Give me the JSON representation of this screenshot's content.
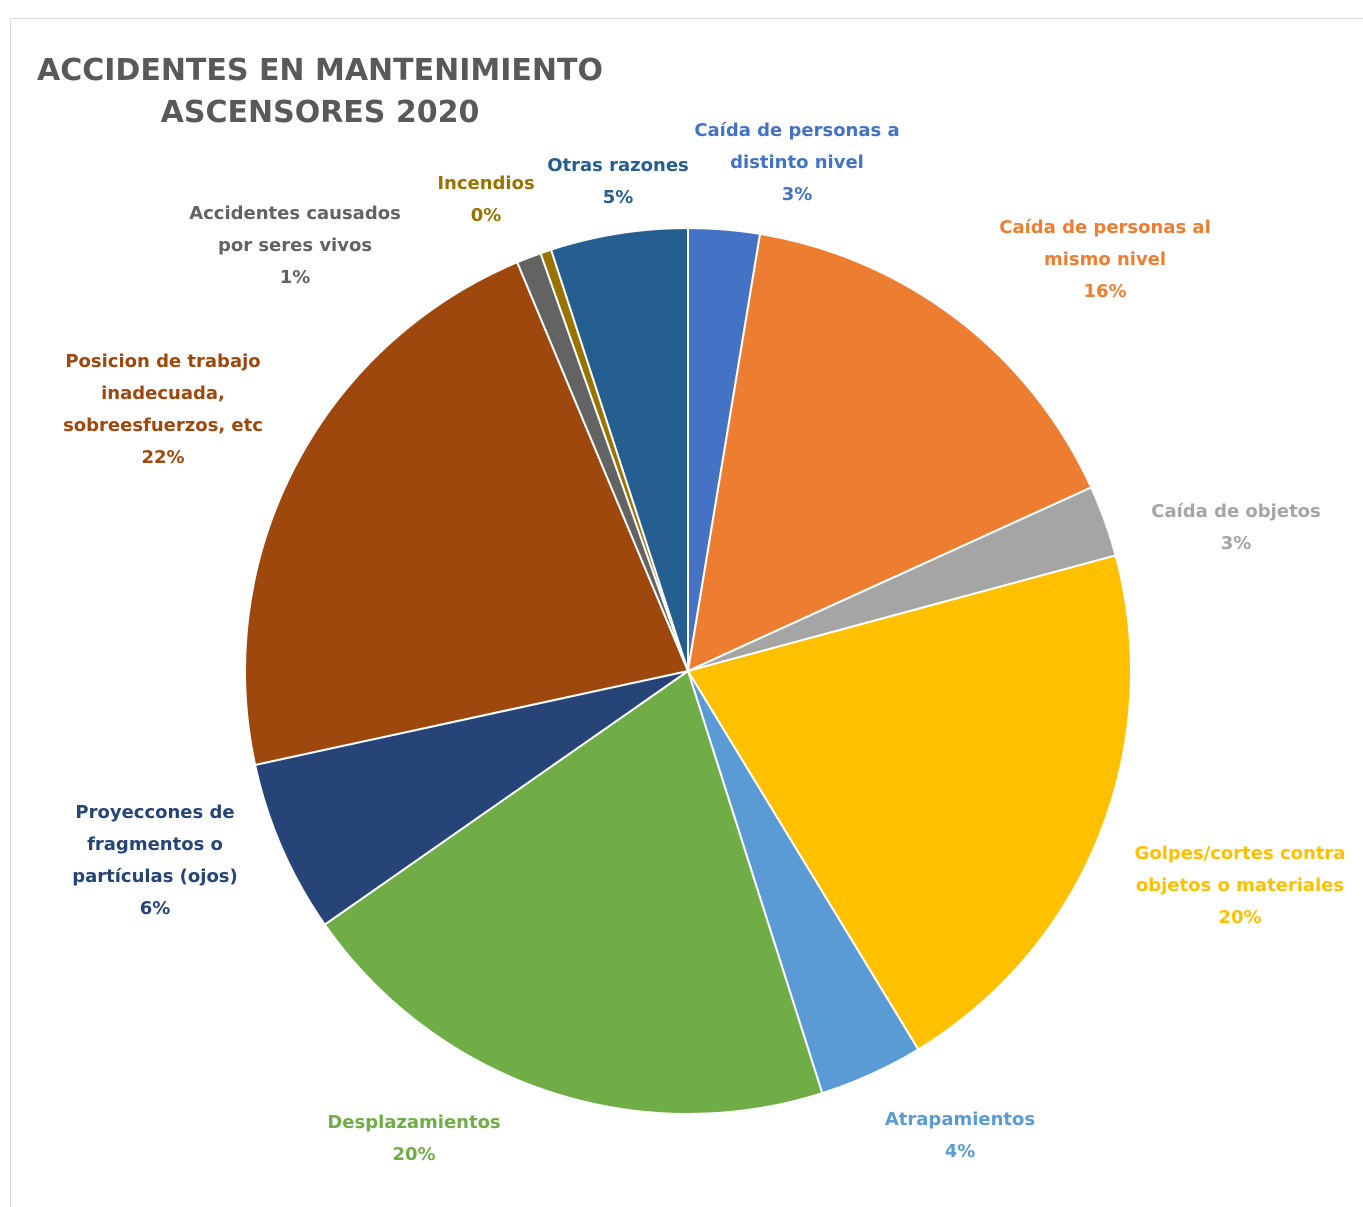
{
  "chart_data": {
    "type": "pie",
    "title": "ACCIDENTES EN MANTENIMIENTO ASCENSORES 2020",
    "title_lines": [
      "ACCIDENTES EN MANTENIMIENTO",
      "ASCENSORES 2020"
    ],
    "start_angle_deg": 0,
    "direction": "clockwise",
    "slices": [
      {
        "label": "Caída de personas a distinto nivel",
        "label_lines": [
          "Caída de personas a",
          "distinto nivel"
        ],
        "value": 2.6,
        "pct_label": "3%",
        "color": "#4472C4"
      },
      {
        "label": "Caída de personas al mismo nivel",
        "label_lines": [
          "Caída de personas al",
          "mismo nivel"
        ],
        "value": 15.6,
        "pct_label": "16%",
        "color": "#ED7D31"
      },
      {
        "label": "Caída de objetos",
        "label_lines": [
          "Caída de objetos"
        ],
        "value": 2.6,
        "pct_label": "3%",
        "color": "#A5A5A5"
      },
      {
        "label": "Golpes/cortes contra objetos o materiales",
        "label_lines": [
          "Golpes/cortes contra",
          "objetos o materiales"
        ],
        "value": 20.5,
        "pct_label": "20%",
        "color": "#FFC000"
      },
      {
        "label": "Atrapamientos",
        "label_lines": [
          "Atrapamientos"
        ],
        "value": 3.8,
        "pct_label": "4%",
        "color": "#5B9BD5"
      },
      {
        "label": "Desplazamientos",
        "label_lines": [
          "Desplazamientos"
        ],
        "value": 20.2,
        "pct_label": "20%",
        "color": "#70AD47"
      },
      {
        "label": "Proyeccones de fragmentos o partículas (ojos)",
        "label_lines": [
          "Proyeccones de",
          "fragmentos o",
          "partículas (ojos)"
        ],
        "value": 6.3,
        "pct_label": "6%",
        "color": "#264478"
      },
      {
        "label": "Posicion de trabajo inadecuada, sobreesfuerzos, etc",
        "label_lines": [
          "Posicion de trabajo",
          "inadecuada,",
          "sobreesfuerzos, etc"
        ],
        "value": 22.1,
        "pct_label": "22%",
        "color": "#9E480E"
      },
      {
        "label": "Accidentes causados por seres vivos",
        "label_lines": [
          "Accidentes causados",
          "por seres vivos"
        ],
        "value": 0.9,
        "pct_label": "1%",
        "color": "#636363"
      },
      {
        "label": "Incendios",
        "label_lines": [
          "Incendios"
        ],
        "value": 0.4,
        "pct_label": "0%",
        "color": "#997300"
      },
      {
        "label": "Otras razones",
        "label_lines": [
          "Otras razones"
        ],
        "value": 5.0,
        "pct_label": "5%",
        "color": "#255E91"
      }
    ]
  }
}
